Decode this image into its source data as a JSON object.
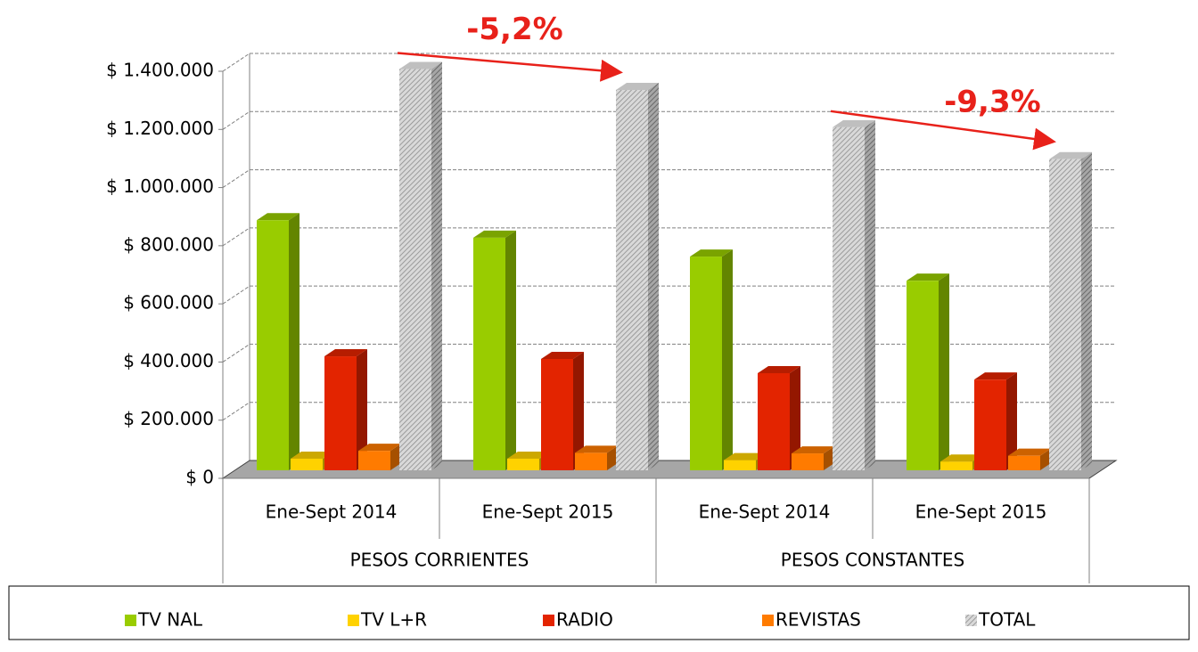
{
  "chart_data": {
    "type": "bar3d",
    "categories": [
      "Ene-Sept 2014",
      "Ene-Sept 2015",
      "Ene-Sept 2014",
      "Ene-Sept 2015"
    ],
    "groups": [
      "PESOS CORRIENTES",
      "PESOS CONSTANTES"
    ],
    "series": [
      {
        "name": "TV NAL",
        "color": "#99cc00",
        "values": [
          860000,
          800000,
          735000,
          652000
        ]
      },
      {
        "name": "TV L+R",
        "color": "#ffd200",
        "values": [
          40000,
          40000,
          35000,
          30000
        ]
      },
      {
        "name": "RADIO",
        "color": "#e32400",
        "values": [
          392000,
          383000,
          334000,
          312000
        ]
      },
      {
        "name": "REVISTAS",
        "color": "#ff7b00",
        "values": [
          67000,
          60000,
          58000,
          50000
        ]
      },
      {
        "name": "TOTAL",
        "color": "#a6a6a6",
        "pattern": "hatch",
        "values": [
          1380000,
          1308000,
          1180000,
          1070000
        ]
      }
    ],
    "ylim": [
      0,
      1400000
    ],
    "yticks": [
      {
        "value": 0,
        "label": "$ 0"
      },
      {
        "value": 200000,
        "label": "$ 200.000"
      },
      {
        "value": 400000,
        "label": "$ 400.000"
      },
      {
        "value": 600000,
        "label": "$ 600.000"
      },
      {
        "value": 800000,
        "label": "$ 800.000"
      },
      {
        "value": 1000000,
        "label": "$ 1.000.000"
      },
      {
        "value": 1200000,
        "label": "$ 1.200.000"
      },
      {
        "value": 1400000,
        "label": "$ 1.400.000"
      }
    ],
    "grid": true,
    "legend": "bottom",
    "annotations": [
      "-5,2%",
      "-9,3%"
    ]
  }
}
